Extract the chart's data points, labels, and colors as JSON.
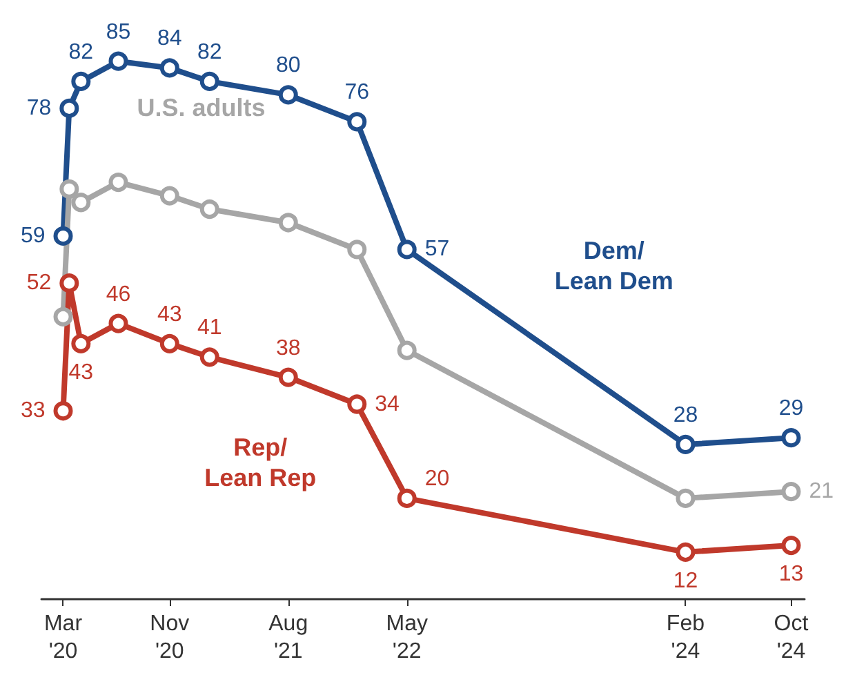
{
  "chart_data": {
    "type": "line",
    "x": [
      "2020-03-10",
      "2020-03-24",
      "2020-04-20",
      "2020-07-15",
      "2020-11-10",
      "2021-02-10",
      "2021-08-10",
      "2022-01-15",
      "2022-05-10",
      "2024-02-10",
      "2024-10-10"
    ],
    "series": [
      {
        "name": "Dem/\nLean Dem",
        "color": "#1f4e8c",
        "values": [
          59,
          78,
          82,
          85,
          84,
          82,
          80,
          76,
          57,
          28,
          29
        ],
        "value_labels": [
          "59",
          "78",
          "82",
          "85",
          "84",
          "82",
          "80",
          "76",
          "57",
          "28",
          "29"
        ]
      },
      {
        "name": "U.S. adults",
        "color": "#a6a6a6",
        "values": [
          47,
          66,
          64,
          67,
          65,
          63,
          61,
          57,
          42,
          20,
          21
        ],
        "value_labels": [
          null,
          null,
          null,
          null,
          null,
          null,
          null,
          null,
          null,
          null,
          "21"
        ]
      },
      {
        "name": "Rep/\nLean Rep",
        "color": "#c0392b",
        "values": [
          33,
          52,
          43,
          46,
          43,
          41,
          38,
          34,
          20,
          12,
          13
        ],
        "value_labels": [
          "33",
          "52",
          "43",
          "46",
          "43",
          "41",
          "38",
          "34",
          "20",
          "12",
          "13"
        ]
      }
    ],
    "xlim": [
      "2020-01-20",
      "2024-11-10"
    ],
    "xticks": [
      {
        "value": "2020-03-10",
        "label": "Mar\n'20"
      },
      {
        "value": "2020-11-10",
        "label": "Nov\n'20"
      },
      {
        "value": "2021-08-10",
        "label": "Aug\n'21"
      },
      {
        "value": "2022-05-10",
        "label": "May\n'22"
      },
      {
        "value": "2024-02-10",
        "label": "Feb\n'24"
      },
      {
        "value": "2024-10-10",
        "label": "Oct\n'24"
      }
    ],
    "tick_labels": "x",
    "grid": false,
    "legend": false,
    "marker": "circle",
    "line_style": "solid"
  }
}
